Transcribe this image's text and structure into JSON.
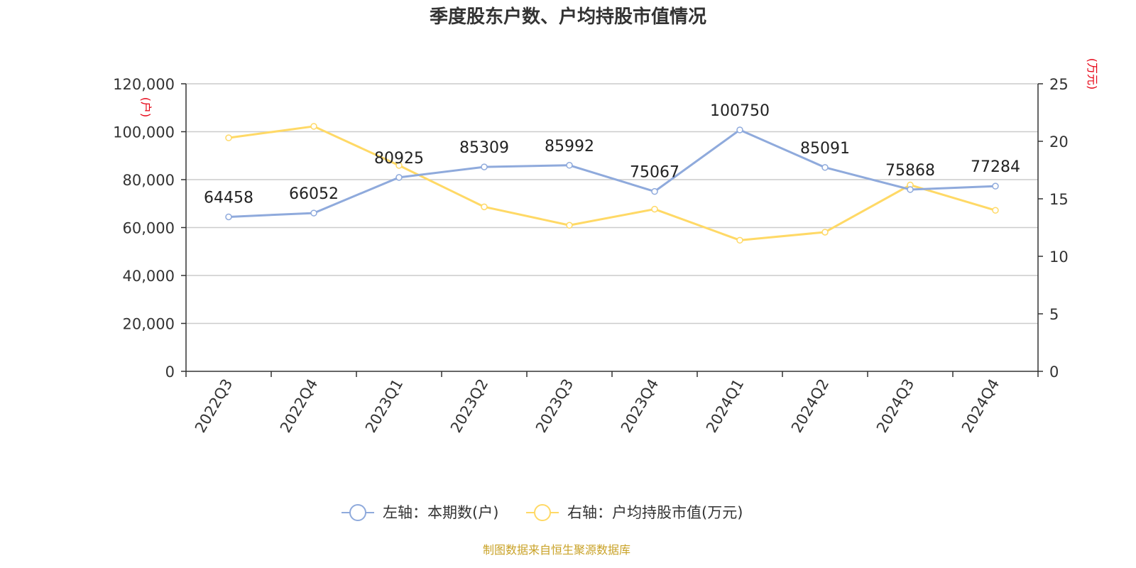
{
  "chart_data": {
    "type": "line",
    "title": "季度股东户数、户均持股市值情况",
    "categories": [
      "2022Q3",
      "2022Q4",
      "2023Q1",
      "2023Q2",
      "2023Q3",
      "2023Q4",
      "2024Q1",
      "2024Q2",
      "2024Q3",
      "2024Q4"
    ],
    "left_axis": {
      "unit_label": "(户)",
      "range": [
        0,
        120000
      ],
      "ticks": [
        "0",
        "20,000",
        "40,000",
        "60,000",
        "80,000",
        "100,000",
        "120,000"
      ],
      "tick_values": [
        0,
        20000,
        40000,
        60000,
        80000,
        100000,
        120000
      ]
    },
    "right_axis": {
      "unit_label": "(万元)",
      "range": [
        0,
        25
      ],
      "ticks": [
        "0",
        "5",
        "10",
        "15",
        "20",
        "25"
      ],
      "tick_values": [
        0,
        5,
        10,
        15,
        20,
        25
      ]
    },
    "grid": true,
    "legend_position": "bottom",
    "series": [
      {
        "name": "左轴：本期数(户)",
        "axis": "left",
        "color": "#8faadc",
        "show_labels": true,
        "values": [
          64458,
          66052,
          80925,
          85309,
          85992,
          75067,
          100750,
          85091,
          75868,
          77284
        ]
      },
      {
        "name": "右轴：户均持股市值(万元)",
        "axis": "right",
        "color": "#ffd966",
        "show_labels": false,
        "values": [
          20.3,
          21.3,
          17.9,
          14.3,
          12.7,
          14.1,
          11.4,
          12.1,
          16.2,
          14.0
        ]
      }
    ],
    "source": "制图数据来自恒生聚源数据库"
  },
  "colors": {
    "label_unit": "#e60012",
    "source_text": "#c9a227",
    "axis": "#333333",
    "grid": "#cccccc"
  }
}
